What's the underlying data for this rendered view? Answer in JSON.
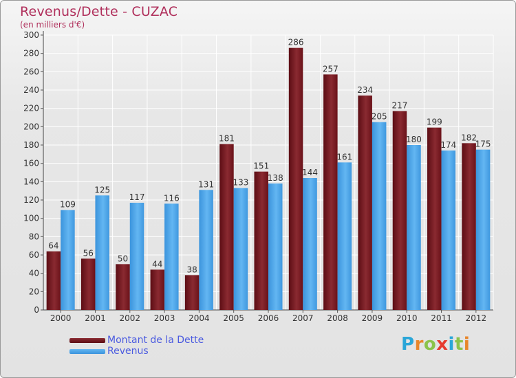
{
  "header": {
    "title": "Revenus/Dette - CUZAC",
    "subtitle": "(en milliers d'€)"
  },
  "legend": {
    "items": [
      {
        "label": "Montant de la Dette",
        "color": "#6b0f17"
      },
      {
        "label": "Revenus",
        "color": "#3c9ae6"
      }
    ]
  },
  "logo": {
    "letters": [
      "P",
      "r",
      "o",
      "x",
      "i",
      "t",
      "i"
    ],
    "colors": [
      "#2aa6d8",
      "#e8862a",
      "#8bc34a",
      "#e63a2e",
      "#2aa6d8",
      "#8bc34a",
      "#e8862a"
    ]
  },
  "chart_data": {
    "type": "bar",
    "categories": [
      "2000",
      "2001",
      "2002",
      "2003",
      "2004",
      "2005",
      "2006",
      "2007",
      "2008",
      "2009",
      "2010",
      "2011",
      "2012"
    ],
    "series": [
      {
        "name": "Montant de la Dette",
        "color": "#7a1b22",
        "values": [
          64,
          56,
          50,
          44,
          38,
          181,
          151,
          286,
          257,
          234,
          217,
          199,
          182
        ]
      },
      {
        "name": "Revenus",
        "color": "#4aa6ea",
        "values": [
          109,
          125,
          117,
          116,
          131,
          133,
          138,
          144,
          161,
          205,
          180,
          174,
          175
        ]
      }
    ],
    "yticks": [
      0,
      20,
      40,
      60,
      80,
      100,
      120,
      140,
      160,
      180,
      200,
      220,
      240,
      260,
      280,
      300
    ],
    "ylim": [
      0,
      300
    ],
    "grid": true,
    "legend_position": "bottom-left"
  }
}
